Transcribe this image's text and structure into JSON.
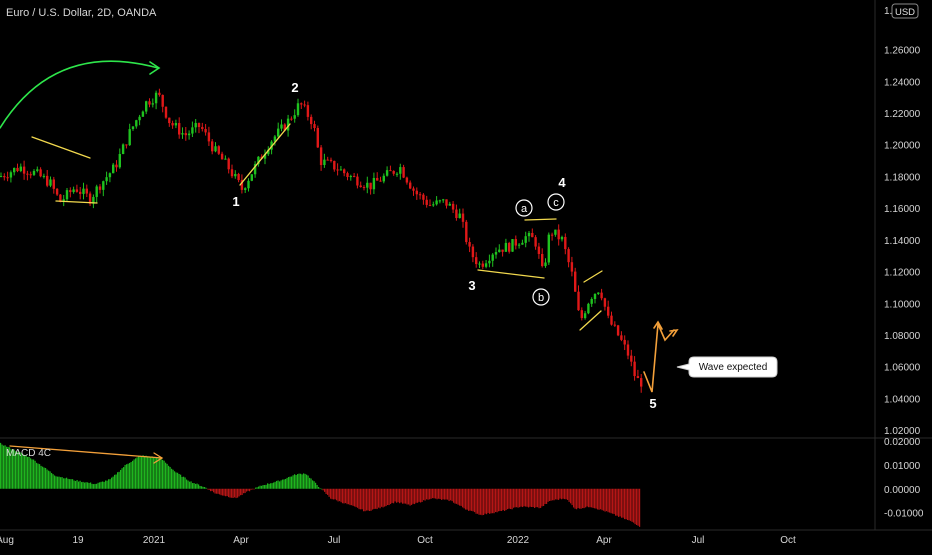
{
  "header": {
    "title": "Euro / U.S. Dollar, 2D, OANDA",
    "currency_badge": "USD"
  },
  "chart_data": {
    "type": "candlestick",
    "title": "Euro / U.S. Dollar, 2D, OANDA",
    "price_axis": {
      "ticks": [
        "1.26000",
        "1.24000",
        "1.22000",
        "1.20000",
        "1.18000",
        "1.16000",
        "1.14000",
        "1.12000",
        "1.10000",
        "1.08000",
        "1.06000",
        "1.04000",
        "1.02000"
      ],
      "range": [
        1.015,
        1.285
      ]
    },
    "time_axis": {
      "ticks": [
        "Aug",
        "19",
        "2021",
        "Apr",
        "Jul",
        "Oct",
        "2022",
        "Apr",
        "Jul",
        "Oct"
      ]
    },
    "price_path": [
      [
        0,
        1.18
      ],
      [
        20,
        1.186
      ],
      [
        35,
        1.182
      ],
      [
        50,
        1.176
      ],
      [
        60,
        1.164
      ],
      [
        75,
        1.173
      ],
      [
        90,
        1.166
      ],
      [
        100,
        1.175
      ],
      [
        115,
        1.186
      ],
      [
        130,
        1.208
      ],
      [
        145,
        1.226
      ],
      [
        158,
        1.232
      ],
      [
        170,
        1.214
      ],
      [
        185,
        1.206
      ],
      [
        200,
        1.212
      ],
      [
        215,
        1.196
      ],
      [
        228,
        1.186
      ],
      [
        242,
        1.172
      ],
      [
        255,
        1.186
      ],
      [
        270,
        1.202
      ],
      [
        285,
        1.212
      ],
      [
        300,
        1.226
      ],
      [
        313,
        1.214
      ],
      [
        320,
        1.19
      ],
      [
        335,
        1.186
      ],
      [
        350,
        1.18
      ],
      [
        370,
        1.174
      ],
      [
        385,
        1.18
      ],
      [
        400,
        1.186
      ],
      [
        415,
        1.17
      ],
      [
        430,
        1.162
      ],
      [
        445,
        1.164
      ],
      [
        460,
        1.155
      ],
      [
        470,
        1.132
      ],
      [
        480,
        1.124
      ],
      [
        495,
        1.134
      ],
      [
        510,
        1.136
      ],
      [
        525,
        1.142
      ],
      [
        535,
        1.14
      ],
      [
        543,
        1.118
      ],
      [
        550,
        1.146
      ],
      [
        562,
        1.14
      ],
      [
        572,
        1.118
      ],
      [
        580,
        1.088
      ],
      [
        590,
        1.104
      ],
      [
        600,
        1.11
      ],
      [
        608,
        1.09
      ],
      [
        618,
        1.08
      ],
      [
        628,
        1.068
      ],
      [
        636,
        1.052
      ],
      [
        642,
        1.05
      ]
    ],
    "wave_labels": [
      {
        "label": "1",
        "style": "plain"
      },
      {
        "label": "2",
        "style": "plain"
      },
      {
        "label": "3",
        "style": "plain"
      },
      {
        "label": "4",
        "style": "plain"
      },
      {
        "label": "5",
        "style": "plain"
      },
      {
        "label": "a",
        "style": "circled"
      },
      {
        "label": "b",
        "style": "circled"
      },
      {
        "label": "c",
        "style": "circled"
      }
    ],
    "callout": "Wave expected",
    "indicator": {
      "name": "MACD 4C",
      "ticks": [
        "0.02000",
        "0.01000",
        "0.00000",
        "-0.01000"
      ],
      "range": [
        -0.0165,
        0.0205
      ],
      "path": [
        [
          0,
          0.019
        ],
        [
          30,
          0.013
        ],
        [
          55,
          0.0055
        ],
        [
          75,
          0.0035
        ],
        [
          95,
          0.002
        ],
        [
          110,
          0.004
        ],
        [
          125,
          0.01
        ],
        [
          140,
          0.014
        ],
        [
          160,
          0.013
        ],
        [
          175,
          0.007
        ],
        [
          190,
          0.003
        ],
        [
          205,
          0.0005
        ],
        [
          215,
          -0.002
        ],
        [
          235,
          -0.004
        ],
        [
          248,
          -0.001
        ],
        [
          262,
          0.0015
        ],
        [
          280,
          0.0035
        ],
        [
          295,
          0.006
        ],
        [
          305,
          0.0065
        ],
        [
          318,
          0.001
        ],
        [
          330,
          -0.004
        ],
        [
          350,
          -0.007
        ],
        [
          365,
          -0.0095
        ],
        [
          380,
          -0.008
        ],
        [
          395,
          -0.0055
        ],
        [
          410,
          -0.007
        ],
        [
          430,
          -0.004
        ],
        [
          450,
          -0.005
        ],
        [
          465,
          -0.0085
        ],
        [
          480,
          -0.011
        ],
        [
          500,
          -0.0095
        ],
        [
          520,
          -0.0075
        ],
        [
          540,
          -0.008
        ],
        [
          550,
          -0.005
        ],
        [
          565,
          -0.004
        ],
        [
          575,
          -0.0085
        ],
        [
          590,
          -0.0075
        ],
        [
          605,
          -0.0095
        ],
        [
          620,
          -0.012
        ],
        [
          632,
          -0.014
        ],
        [
          640,
          -0.016
        ]
      ]
    },
    "colors": {
      "up": "#1fc21f",
      "down": "#e01818",
      "trendline": "#f2d94e",
      "arrow_green": "#2ee64b",
      "arrow_orange": "#f3a03a",
      "hist_up": "#1fb51f",
      "hist_down": "#b51616"
    }
  }
}
